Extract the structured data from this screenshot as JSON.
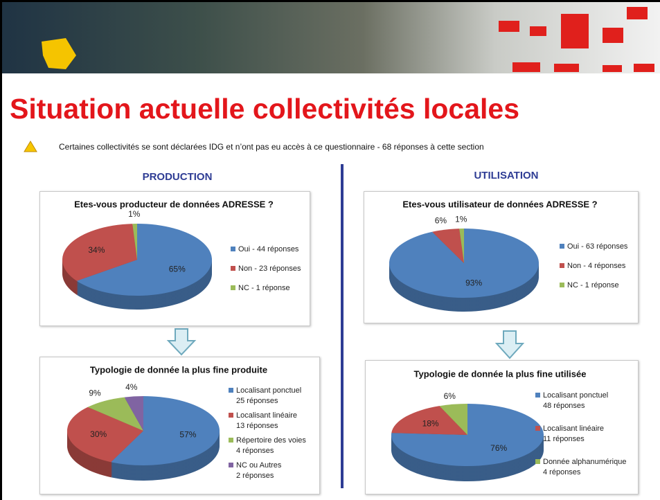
{
  "title": "Situation actuelle collectivités locales",
  "note": "Certaines collectivités se sont déclarées IDG et n’ont pas eu accès à ce questionnaire  -  68 réponses à cette section",
  "sections": [
    "PRODUCTION",
    "UTILISATION"
  ],
  "chart_data": [
    {
      "type": "pie",
      "title": "Etes-vous producteur de données ADRESSE ?",
      "categories": [
        "Oui - 44 réponses",
        "Non - 23 réponses",
        "NC - 1 réponse"
      ],
      "values": [
        65,
        34,
        1
      ],
      "value_labels": [
        "65%",
        "34%",
        "1%"
      ],
      "colors": [
        "#4f81bd",
        "#c0504d",
        "#9bbb59"
      ]
    },
    {
      "type": "pie",
      "title": "Etes-vous utilisateur de données ADRESSE ?",
      "categories": [
        "Oui - 63 réponses",
        "Non - 4 réponses",
        "NC - 1 réponse"
      ],
      "values": [
        93,
        6,
        1
      ],
      "value_labels": [
        "93%",
        "6%",
        "1%"
      ],
      "colors": [
        "#4f81bd",
        "#c0504d",
        "#9bbb59"
      ]
    },
    {
      "type": "pie",
      "title": "Typologie de donnée la plus fine produite",
      "categories": [
        "Localisant ponctuel\n25 réponses",
        "Localisant linéaire\n13 réponses",
        "Répertoire des voies\n4 réponses",
        "NC ou Autres\n2 réponses"
      ],
      "values": [
        57,
        30,
        9,
        4
      ],
      "value_labels": [
        "57%",
        "30%",
        "9%",
        "4%"
      ],
      "colors": [
        "#4f81bd",
        "#c0504d",
        "#9bbb59",
        "#8064a2"
      ]
    },
    {
      "type": "pie",
      "title": "Typologie de donnée la plus fine utilisée",
      "categories": [
        "Localisant ponctuel\n48 réponses",
        "Localisant linéaire\n11 réponses",
        "Donnée alphanumérique\n4 réponses"
      ],
      "values": [
        76,
        18,
        6
      ],
      "value_labels": [
        "76%",
        "18%",
        "6%"
      ],
      "colors": [
        "#4f81bd",
        "#c0504d",
        "#9bbb59"
      ]
    }
  ]
}
